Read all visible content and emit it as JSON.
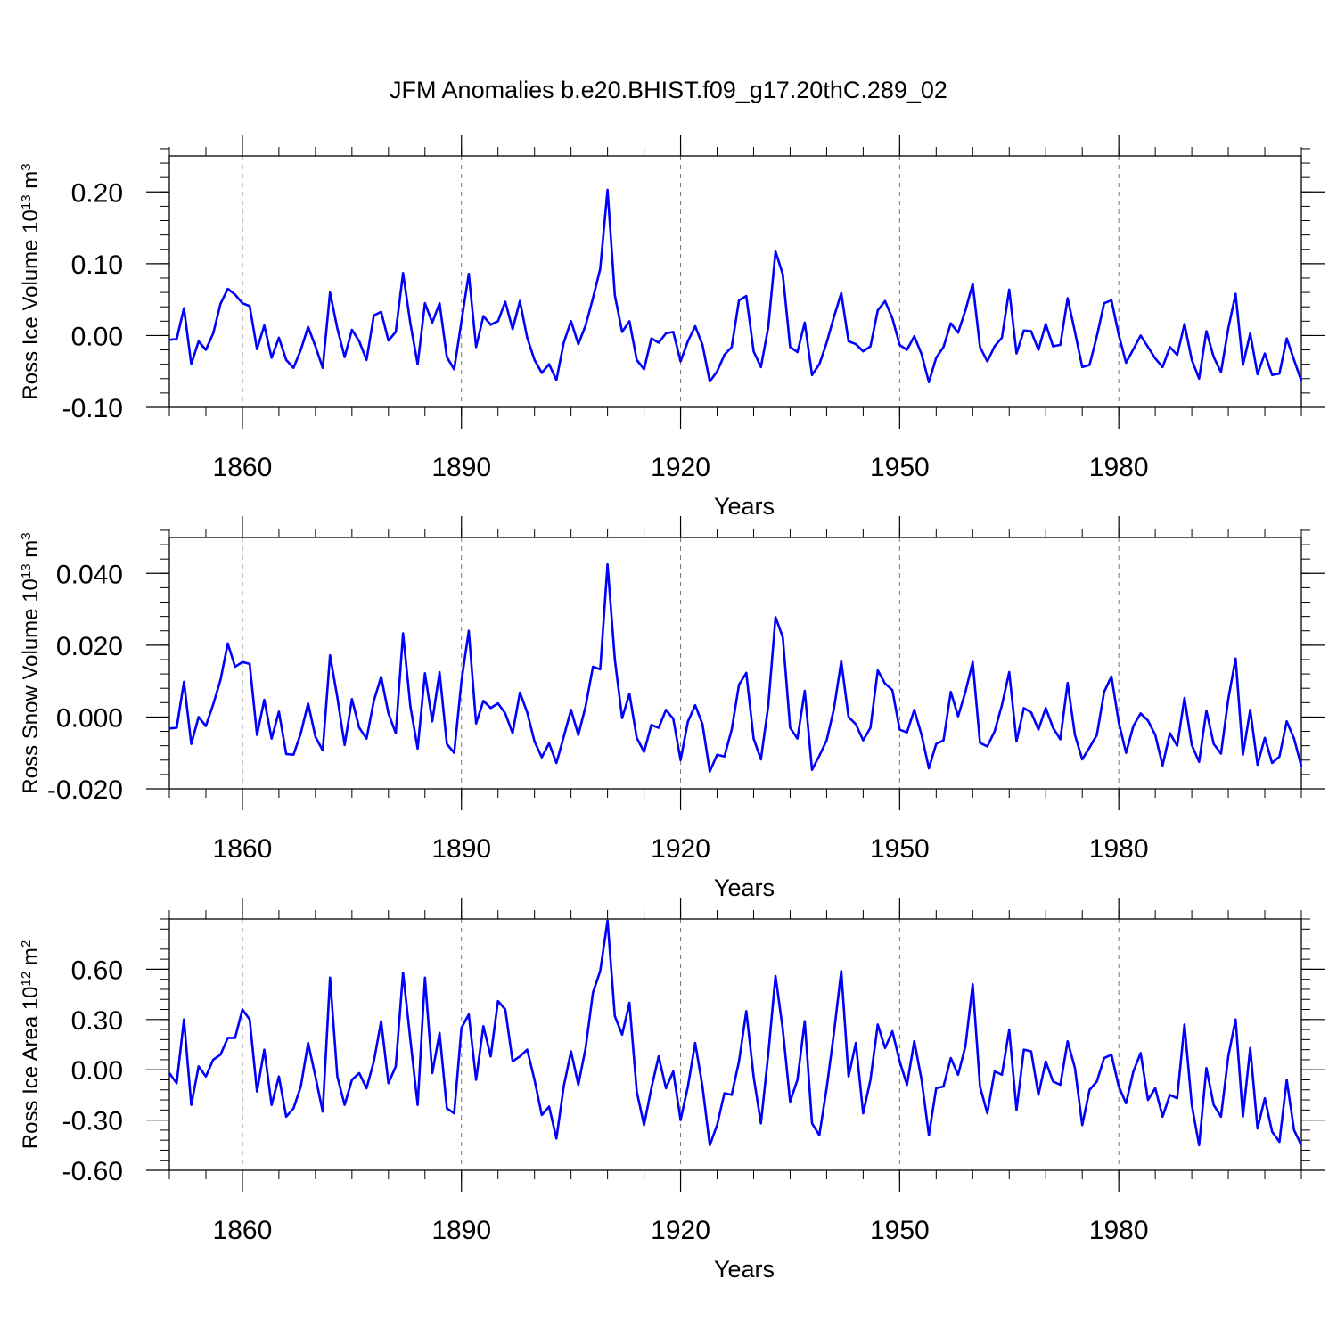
{
  "title": "JFM Anomalies b.e20.BHIST.f09_g17.20thC.289_02",
  "chart_data": [
    {
      "type": "line",
      "ylabel_prefix": "Ross Ice Volume 10",
      "ylabel_exp": "13",
      "ylabel_unit": " m",
      "ylabel_unit_exp": "3",
      "xlabel": "Years",
      "xlim": [
        1850,
        2005
      ],
      "ylim": [
        -0.1,
        0.25
      ],
      "yticks": [
        -0.1,
        0.0,
        0.1,
        0.2
      ],
      "ytick_labels": [
        "-0.10",
        "0.00",
        "0.10",
        "0.20"
      ],
      "xticks": [
        1860,
        1890,
        1920,
        1950,
        1980
      ],
      "xtick_labels": [
        "1860",
        "1890",
        "1920",
        "1950",
        "1980"
      ],
      "grid": "dashed vertical at major x ticks",
      "color": "#0000ff",
      "x_start": 1850,
      "values": [
        -0.006,
        -0.005,
        0.038,
        -0.04,
        -0.008,
        -0.02,
        0.003,
        0.044,
        0.065,
        0.057,
        0.045,
        0.041,
        -0.019,
        0.014,
        -0.031,
        -0.003,
        -0.034,
        -0.045,
        -0.02,
        0.012,
        -0.015,
        -0.045,
        0.06,
        0.01,
        -0.03,
        0.008,
        -0.008,
        -0.034,
        0.028,
        0.033,
        -0.007,
        0.005,
        0.087,
        0.017,
        -0.04,
        0.045,
        0.018,
        0.045,
        -0.03,
        -0.047,
        0.02,
        0.086,
        -0.016,
        0.027,
        0.015,
        0.02,
        0.047,
        0.009,
        0.048,
        -0.003,
        -0.034,
        -0.052,
        -0.04,
        -0.062,
        -0.01,
        0.02,
        -0.012,
        0.014,
        0.052,
        0.093,
        0.203,
        0.056,
        0.005,
        0.02,
        -0.034,
        -0.047,
        -0.004,
        -0.01,
        0.003,
        0.005,
        -0.036,
        -0.008,
        0.013,
        -0.013,
        -0.064,
        -0.05,
        -0.027,
        -0.016,
        0.049,
        0.055,
        -0.022,
        -0.044,
        0.011,
        0.117,
        0.085,
        -0.016,
        -0.023,
        0.018,
        -0.055,
        -0.04,
        -0.01,
        0.026,
        0.059,
        -0.008,
        -0.012,
        -0.022,
        -0.015,
        0.035,
        0.048,
        0.024,
        -0.013,
        -0.02,
        -0.001,
        -0.026,
        -0.065,
        -0.031,
        -0.016,
        0.017,
        0.004,
        0.035,
        0.072,
        -0.016,
        -0.036,
        -0.015,
        -0.003,
        0.064,
        -0.025,
        0.007,
        0.006,
        -0.02,
        0.016,
        -0.015,
        -0.013,
        0.052,
        0.005,
        -0.044,
        -0.041,
        -0.001,
        0.045,
        0.049,
        0.001,
        -0.038,
        -0.019,
        0.0,
        -0.016,
        -0.032,
        -0.044,
        -0.016,
        -0.027,
        0.016,
        -0.034,
        -0.06,
        0.006,
        -0.03,
        -0.051,
        0.01,
        0.058,
        -0.041,
        0.003,
        -0.054,
        -0.025,
        -0.055,
        -0.053,
        -0.004,
        -0.034,
        -0.063
      ]
    },
    {
      "type": "line",
      "ylabel_prefix": "Ross Snow Volume 10",
      "ylabel_exp": "13",
      "ylabel_unit": " m",
      "ylabel_unit_exp": "3",
      "xlabel": "Years",
      "xlim": [
        1850,
        2005
      ],
      "ylim": [
        -0.02,
        0.05
      ],
      "yticks": [
        -0.02,
        0.0,
        0.02,
        0.04
      ],
      "ytick_labels": [
        "-0.020",
        "0.000",
        "0.020",
        "0.040"
      ],
      "xticks": [
        1860,
        1890,
        1920,
        1950,
        1980
      ],
      "xtick_labels": [
        "1860",
        "1890",
        "1920",
        "1950",
        "1980"
      ],
      "grid": "dashed vertical at major x ticks",
      "color": "#0000ff",
      "x_start": 1850,
      "values": [
        -0.0032,
        -0.003,
        0.0098,
        -0.0075,
        0.0,
        -0.0025,
        0.0035,
        0.0103,
        0.0205,
        0.014,
        0.0153,
        0.0148,
        -0.005,
        0.0048,
        -0.006,
        0.0015,
        -0.0103,
        -0.0105,
        -0.0045,
        0.0038,
        -0.0055,
        -0.0093,
        0.0172,
        0.0055,
        -0.0078,
        0.005,
        -0.003,
        -0.006,
        0.0045,
        0.0112,
        0.001,
        -0.0045,
        0.0233,
        0.003,
        -0.0088,
        0.0122,
        -0.0012,
        0.0125,
        -0.0075,
        -0.01,
        0.01,
        0.024,
        -0.0018,
        0.0045,
        0.0025,
        0.0038,
        0.001,
        -0.0045,
        0.0068,
        0.0013,
        -0.0068,
        -0.0112,
        -0.0073,
        -0.0128,
        -0.0055,
        0.002,
        -0.005,
        0.003,
        0.014,
        0.0133,
        0.0425,
        0.016,
        -0.0003,
        0.0065,
        -0.0058,
        -0.0097,
        -0.0022,
        -0.003,
        0.002,
        -0.0005,
        -0.012,
        -0.0013,
        0.0033,
        -0.002,
        -0.0152,
        -0.0105,
        -0.011,
        -0.0035,
        0.009,
        0.0123,
        -0.006,
        -0.0118,
        0.003,
        0.0278,
        0.0222,
        -0.003,
        -0.006,
        0.0073,
        -0.0147,
        -0.0108,
        -0.0065,
        0.0023,
        0.0155,
        0.0,
        -0.002,
        -0.0065,
        -0.003,
        0.013,
        0.0093,
        0.0075,
        -0.0035,
        -0.0043,
        0.002,
        -0.005,
        -0.0143,
        -0.0075,
        -0.0065,
        0.007,
        0.0002,
        0.007,
        0.0153,
        -0.0072,
        -0.0082,
        -0.004,
        0.0033,
        0.0125,
        -0.0068,
        0.0025,
        0.0013,
        -0.0035,
        0.0025,
        -0.003,
        -0.0062,
        0.0095,
        -0.005,
        -0.0118,
        -0.0085,
        -0.005,
        0.007,
        0.0113,
        -0.0015,
        -0.01,
        -0.0025,
        0.001,
        -0.001,
        -0.005,
        -0.0135,
        -0.0045,
        -0.008,
        0.0053,
        -0.0078,
        -0.0125,
        0.0018,
        -0.0075,
        -0.0102,
        0.005,
        0.0163,
        -0.0105,
        0.002,
        -0.0133,
        -0.0058,
        -0.0128,
        -0.011,
        -0.0012,
        -0.006,
        -0.0137
      ]
    },
    {
      "type": "line",
      "ylabel_prefix": "Ross Ice Area 10",
      "ylabel_exp": "12",
      "ylabel_unit": " m",
      "ylabel_unit_exp": "2",
      "xlabel": "Years",
      "xlim": [
        1850,
        2005
      ],
      "ylim": [
        -0.6,
        0.9
      ],
      "yticks": [
        -0.6,
        -0.3,
        0.0,
        0.3,
        0.6
      ],
      "ytick_labels": [
        "-0.60",
        "-0.30",
        "0.00",
        "0.30",
        "0.60"
      ],
      "xticks": [
        1860,
        1890,
        1920,
        1950,
        1980
      ],
      "xtick_labels": [
        "1860",
        "1890",
        "1920",
        "1950",
        "1980"
      ],
      "grid": "dashed vertical at major x ticks",
      "color": "#0000ff",
      "x_start": 1850,
      "values": [
        -0.02,
        -0.08,
        0.3,
        -0.21,
        0.02,
        -0.04,
        0.06,
        0.09,
        0.19,
        0.19,
        0.36,
        0.3,
        -0.13,
        0.12,
        -0.21,
        -0.04,
        -0.28,
        -0.23,
        -0.1,
        0.16,
        -0.04,
        -0.25,
        0.55,
        -0.04,
        -0.21,
        -0.06,
        -0.02,
        -0.11,
        0.05,
        0.29,
        -0.08,
        0.02,
        0.58,
        0.18,
        -0.21,
        0.55,
        -0.02,
        0.22,
        -0.23,
        -0.26,
        0.25,
        0.33,
        -0.06,
        0.26,
        0.08,
        0.41,
        0.36,
        0.05,
        0.08,
        0.12,
        -0.06,
        -0.27,
        -0.22,
        -0.41,
        -0.1,
        0.11,
        -0.09,
        0.13,
        0.46,
        0.59,
        0.89,
        0.32,
        0.21,
        0.4,
        -0.13,
        -0.33,
        -0.11,
        0.08,
        -0.11,
        -0.01,
        -0.3,
        -0.1,
        0.16,
        -0.1,
        -0.45,
        -0.33,
        -0.14,
        -0.15,
        0.05,
        0.35,
        -0.04,
        -0.32,
        0.09,
        0.56,
        0.24,
        -0.19,
        -0.06,
        0.29,
        -0.32,
        -0.39,
        -0.11,
        0.22,
        0.59,
        -0.04,
        0.16,
        -0.26,
        -0.06,
        0.27,
        0.13,
        0.23,
        0.05,
        -0.09,
        0.17,
        -0.06,
        -0.39,
        -0.11,
        -0.1,
        0.07,
        -0.03,
        0.14,
        0.51,
        -0.1,
        -0.26,
        -0.01,
        -0.03,
        0.24,
        -0.24,
        0.12,
        0.11,
        -0.15,
        0.05,
        -0.07,
        -0.09,
        0.17,
        0.01,
        -0.33,
        -0.12,
        -0.07,
        0.07,
        0.09,
        -0.1,
        -0.2,
        -0.01,
        0.1,
        -0.18,
        -0.11,
        -0.28,
        -0.15,
        -0.17,
        0.27,
        -0.21,
        -0.45,
        0.01,
        -0.21,
        -0.28,
        0.08,
        0.3,
        -0.28,
        0.13,
        -0.35,
        -0.17,
        -0.37,
        -0.43,
        -0.06,
        -0.36,
        -0.45
      ]
    }
  ]
}
